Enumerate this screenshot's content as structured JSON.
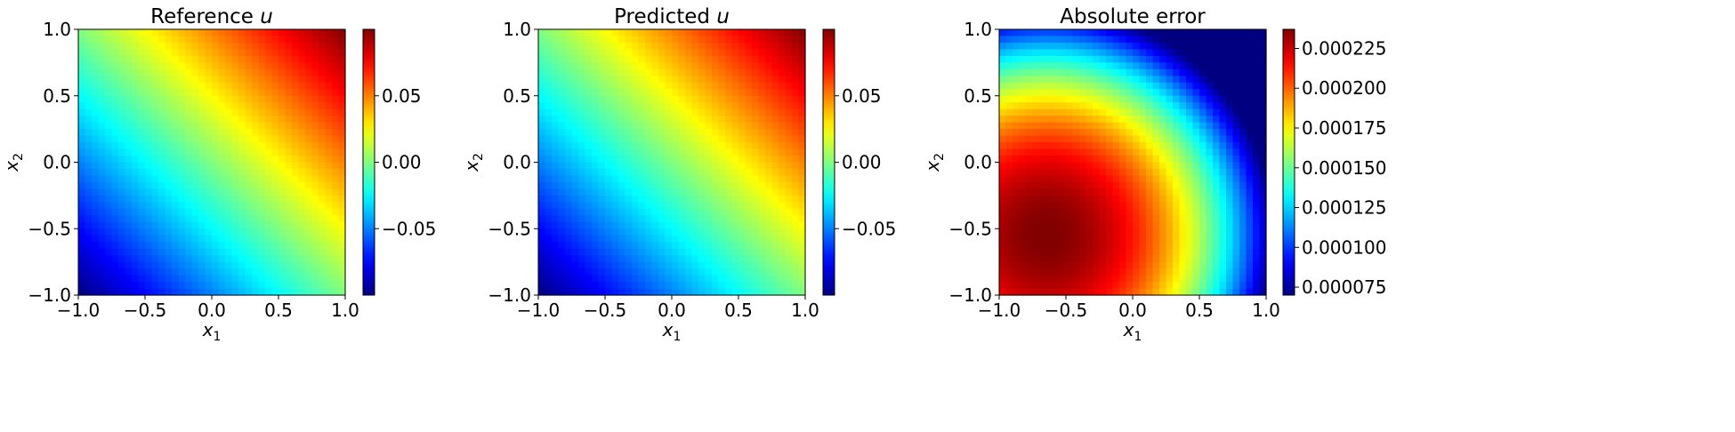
{
  "chart_data": [
    {
      "type": "heatmap",
      "title_text": "Reference ",
      "title_var": "u",
      "xlabel_var": "x",
      "xlabel_sub": "1",
      "ylabel_var": "x",
      "ylabel_sub": "2",
      "xlim": [
        -1.0,
        1.0
      ],
      "ylim": [
        -1.0,
        1.0
      ],
      "xticks": [
        "−1.0",
        "−0.5",
        "0.0",
        "0.5",
        "1.0"
      ],
      "yticks": [
        "−1.0",
        "−0.5",
        "0.0",
        "0.5",
        "1.0"
      ],
      "field": "0.05*(x1+x2)",
      "colormap": "jet",
      "colorbar": {
        "vmin": -0.1,
        "vmax": 0.1,
        "ticks": [
          -0.05,
          0.0,
          0.05
        ],
        "tick_labels": [
          "−0.05",
          "0.00",
          "0.05"
        ]
      }
    },
    {
      "type": "heatmap",
      "title_text": "Predicted ",
      "title_var": "u",
      "xlabel_var": "x",
      "xlabel_sub": "1",
      "ylabel_var": "x",
      "ylabel_sub": "2",
      "xlim": [
        -1.0,
        1.0
      ],
      "ylim": [
        -1.0,
        1.0
      ],
      "xticks": [
        "−1.0",
        "−0.5",
        "0.0",
        "0.5",
        "1.0"
      ],
      "yticks": [
        "−1.0",
        "−0.5",
        "0.0",
        "0.5",
        "1.0"
      ],
      "field": "0.05*(x1+x2)",
      "colormap": "jet",
      "colorbar": {
        "vmin": -0.1,
        "vmax": 0.1,
        "ticks": [
          -0.05,
          0.0,
          0.05
        ],
        "tick_labels": [
          "−0.05",
          "0.00",
          "0.05"
        ]
      }
    },
    {
      "type": "heatmap",
      "title_text": "Absolute error",
      "title_var": "",
      "xlabel_var": "x",
      "xlabel_sub": "1",
      "ylabel_var": "x",
      "ylabel_sub": "2",
      "xlim": [
        -1.0,
        1.0
      ],
      "ylim": [
        -1.0,
        1.0
      ],
      "xticks": [
        "−1.0",
        "−0.5",
        "0.0",
        "0.5",
        "1.0"
      ],
      "yticks": [
        "−1.0",
        "−0.5",
        "0.0",
        "0.5",
        "1.0"
      ],
      "field": "peak ~0.000237 near (-0.65,-0.55), minimum ~0.00007 at (1,1)",
      "error_model": {
        "max": 0.000237,
        "min": 7e-05,
        "center": [
          -0.65,
          -0.55
        ],
        "falloff": 2.05e-05
      },
      "colormap": "jet",
      "colorbar": {
        "vmin": 7e-05,
        "vmax": 0.000237,
        "ticks": [
          7.5e-05,
          0.0001,
          0.000125,
          0.00015,
          0.000175,
          0.0002,
          0.000225
        ],
        "tick_labels": [
          "0.000075",
          "0.000100",
          "0.000125",
          "0.000150",
          "0.000175",
          "0.000200",
          "0.000225"
        ]
      }
    }
  ]
}
